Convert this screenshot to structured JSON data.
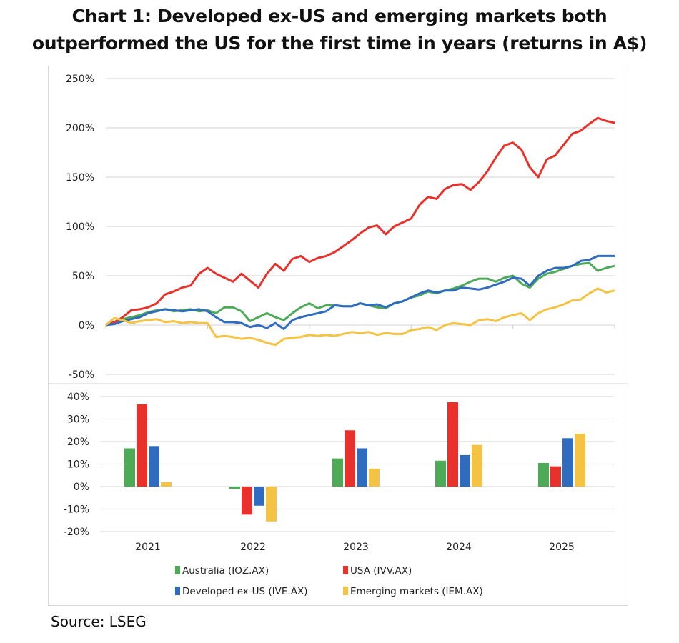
{
  "title_line1": "Chart 1: Developed ex-US and emerging markets both",
  "title_line2": "outperformed the US for the first time in years (returns in A$)",
  "source": "Source: LSEG",
  "colors": {
    "Australia (IOZ.AX)": "#4daa57",
    "USA (IVV.AX)": "#e8312a",
    "Developed ex-US (IVE.AX)": "#2f6cbf",
    "Emerging markets (IEM.AX)": "#f4c343"
  },
  "chart_data": [
    {
      "type": "line",
      "x_range": [
        "2021-01",
        "2025-12"
      ],
      "x_sampling": "monthly, Jan 2021 to end 2025",
      "ylim": [
        -50,
        250
      ],
      "yticks": [
        "250%",
        "200%",
        "150%",
        "100%",
        "50%",
        "0%",
        "-50%"
      ],
      "ytick_values": [
        250,
        200,
        150,
        100,
        50,
        0,
        -50
      ],
      "x_tick_count_years": 5,
      "grid": "horizontal",
      "series": [
        {
          "name": "Australia (IOZ.AX)",
          "values": [
            0,
            3,
            6,
            8,
            10,
            13,
            15,
            16,
            14,
            15,
            16,
            14,
            15,
            12,
            18,
            18,
            14,
            4,
            8,
            12,
            8,
            5,
            12,
            18,
            22,
            17,
            20,
            20,
            19,
            19,
            22,
            20,
            18,
            17,
            22,
            24,
            28,
            30,
            34,
            32,
            35,
            37,
            40,
            44,
            47,
            47,
            44,
            48,
            50,
            42,
            38,
            47,
            52,
            54,
            57,
            60,
            62,
            63,
            55,
            58,
            60
          ]
        },
        {
          "name": "USA (IVV.AX)",
          "values": [
            0,
            3,
            8,
            15,
            16,
            18,
            22,
            31,
            34,
            38,
            40,
            52,
            58,
            52,
            48,
            44,
            52,
            45,
            38,
            52,
            62,
            55,
            67,
            70,
            64,
            68,
            70,
            74,
            80,
            86,
            93,
            99,
            101,
            92,
            100,
            104,
            108,
            122,
            130,
            128,
            138,
            142,
            143,
            137,
            145,
            156,
            170,
            182,
            185,
            178,
            160,
            150,
            168,
            172,
            183,
            194,
            197,
            204,
            210,
            207,
            205
          ]
        },
        {
          "name": "Developed ex-US (IVE.AX)",
          "values": [
            0,
            1,
            4,
            6,
            8,
            12,
            14,
            16,
            15,
            14,
            15,
            16,
            14,
            8,
            3,
            3,
            2,
            -2,
            0,
            -3,
            2,
            -4,
            5,
            8,
            10,
            12,
            14,
            20,
            19,
            19,
            22,
            20,
            21,
            18,
            22,
            24,
            28,
            32,
            35,
            33,
            35,
            35,
            38,
            37,
            36,
            38,
            41,
            44,
            48,
            47,
            40,
            50,
            55,
            58,
            58,
            60,
            65,
            66,
            70,
            70,
            70
          ]
        },
        {
          "name": "Emerging markets (IEM.AX)",
          "values": [
            0,
            7,
            5,
            2,
            4,
            5,
            6,
            3,
            4,
            2,
            3,
            2,
            2,
            -12,
            -11,
            -12,
            -14,
            -13,
            -15,
            -18,
            -20,
            -14,
            -13,
            -12,
            -10,
            -11,
            -10,
            -11,
            -9,
            -7,
            -8,
            -7,
            -10,
            -8,
            -9,
            -9,
            -5,
            -4,
            -2,
            -5,
            0,
            2,
            1,
            0,
            5,
            6,
            4,
            8,
            10,
            12,
            5,
            12,
            16,
            18,
            21,
            25,
            26,
            32,
            37,
            33,
            35
          ]
        }
      ]
    },
    {
      "type": "bar",
      "categories": [
        "2021",
        "2022",
        "2023",
        "2024",
        "2025"
      ],
      "ylim": [
        -20,
        40
      ],
      "yticks": [
        "40%",
        "30%",
        "20%",
        "10%",
        "0%",
        "-10%",
        "-20%"
      ],
      "ytick_values": [
        40,
        30,
        20,
        10,
        0,
        -10,
        -20
      ],
      "grid": "horizontal",
      "legend": "bottom",
      "series": [
        {
          "name": "Australia (IOZ.AX)",
          "values": [
            17,
            -1,
            12.5,
            11.5,
            10.5
          ]
        },
        {
          "name": "USA (IVV.AX)",
          "values": [
            36.5,
            -12.5,
            25,
            37.5,
            9
          ]
        },
        {
          "name": "Developed ex-US (IVE.AX)",
          "values": [
            18,
            -8.5,
            17,
            14,
            21.5
          ]
        },
        {
          "name": "Emerging markets (IEM.AX)",
          "values": [
            2,
            -15.5,
            8,
            18.5,
            23.5
          ]
        }
      ]
    }
  ]
}
